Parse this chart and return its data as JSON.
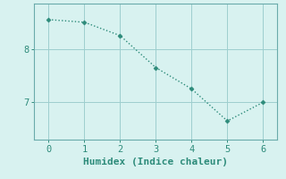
{
  "x": [
    0,
    1,
    2,
    3,
    4,
    5,
    6
  ],
  "y": [
    8.55,
    8.5,
    8.25,
    7.65,
    7.25,
    6.65,
    7.0
  ],
  "line_color": "#2d8b7a",
  "marker": "D",
  "marker_size": 2.5,
  "linewidth": 1.0,
  "linestyle": ":",
  "xlabel": "Humidex (Indice chaleur)",
  "xlabel_fontsize": 8,
  "ylim": [
    6.3,
    8.85
  ],
  "xlim": [
    -0.4,
    6.4
  ],
  "yticks": [
    7,
    8
  ],
  "xticks": [
    0,
    1,
    2,
    3,
    4,
    5,
    6
  ],
  "grid_color": "#9ecece",
  "background_color": "#d8f2f0",
  "tick_color": "#2d8b7a",
  "tick_fontsize": 7.5,
  "spine_color": "#6aabab"
}
